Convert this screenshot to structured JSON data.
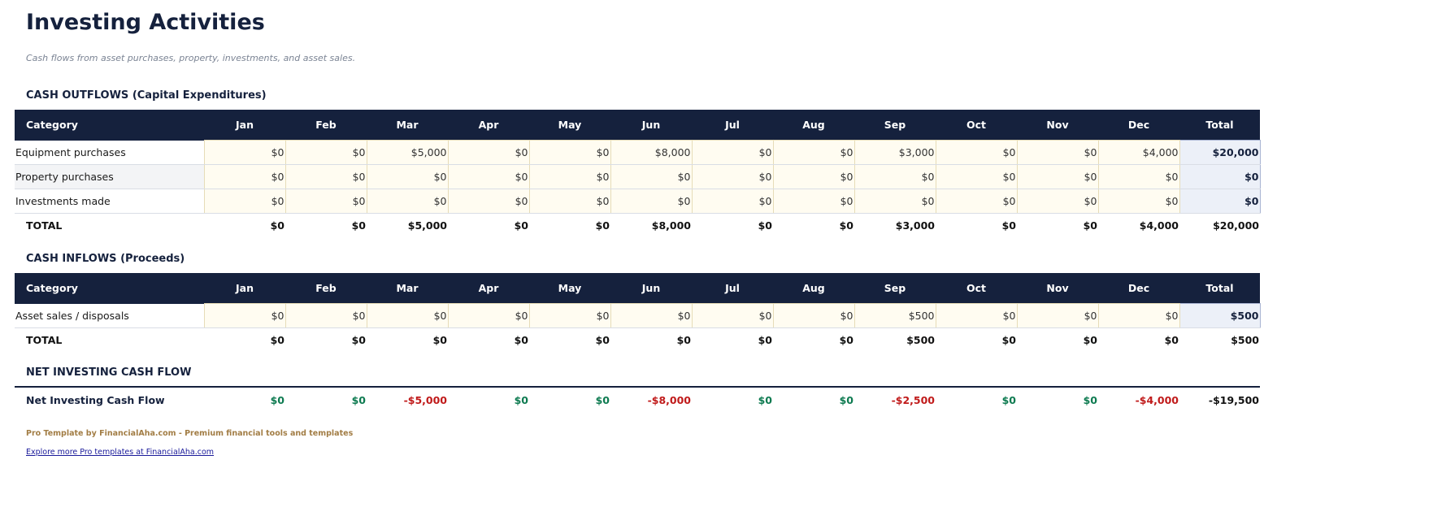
{
  "title": "Investing Activities",
  "subtitle": "Cash flows from asset purchases, property, investments, and asset sales.",
  "headers": [
    "Category",
    "Jan",
    "Feb",
    "Mar",
    "Apr",
    "May",
    "Jun",
    "Jul",
    "Aug",
    "Sep",
    "Oct",
    "Nov",
    "Dec",
    "Total"
  ],
  "outflows": {
    "heading": "CASH OUTFLOWS (Capital Expenditures)",
    "rows": [
      {
        "label": "Equipment purchases",
        "values": [
          "$0",
          "$0",
          "$5,000",
          "$0",
          "$0",
          "$8,000",
          "$0",
          "$0",
          "$3,000",
          "$0",
          "$0",
          "$4,000"
        ],
        "total": "$20,000"
      },
      {
        "label": "Property purchases",
        "values": [
          "$0",
          "$0",
          "$0",
          "$0",
          "$0",
          "$0",
          "$0",
          "$0",
          "$0",
          "$0",
          "$0",
          "$0"
        ],
        "total": "$0"
      },
      {
        "label": "Investments made",
        "values": [
          "$0",
          "$0",
          "$0",
          "$0",
          "$0",
          "$0",
          "$0",
          "$0",
          "$0",
          "$0",
          "$0",
          "$0"
        ],
        "total": "$0"
      }
    ],
    "total": {
      "label": "TOTAL",
      "values": [
        "$0",
        "$0",
        "$5,000",
        "$0",
        "$0",
        "$8,000",
        "$0",
        "$0",
        "$3,000",
        "$0",
        "$0",
        "$4,000"
      ],
      "total": "$20,000"
    }
  },
  "inflows": {
    "heading": "CASH INFLOWS (Proceeds)",
    "rows": [
      {
        "label": "Asset sales / disposals",
        "values": [
          "$0",
          "$0",
          "$0",
          "$0",
          "$0",
          "$0",
          "$0",
          "$0",
          "$500",
          "$0",
          "$0",
          "$0"
        ],
        "total": "$500"
      }
    ],
    "total": {
      "label": "TOTAL",
      "values": [
        "$0",
        "$0",
        "$0",
        "$0",
        "$0",
        "$0",
        "$0",
        "$0",
        "$500",
        "$0",
        "$0",
        "$0"
      ],
      "total": "$500"
    }
  },
  "net": {
    "heading": "NET INVESTING CASH FLOW",
    "label": "Net Investing Cash Flow",
    "values": [
      "$0",
      "$0",
      "-$5,000",
      "$0",
      "$0",
      "-$8,000",
      "$0",
      "$0",
      "-$2,500",
      "$0",
      "$0",
      "-$4,000"
    ],
    "total": "-$19,500"
  },
  "colors": {
    "header_bg": "#15213d",
    "positive": "#0d7a50",
    "negative": "#c01a1a",
    "input_bg": "#fffcf1",
    "total_bg": "#ecf0f8"
  },
  "footer": {
    "credit": "Pro Template by FinancialAha.com - Premium financial tools and templates",
    "link": "Explore more Pro templates at FinancialAha.com"
  }
}
